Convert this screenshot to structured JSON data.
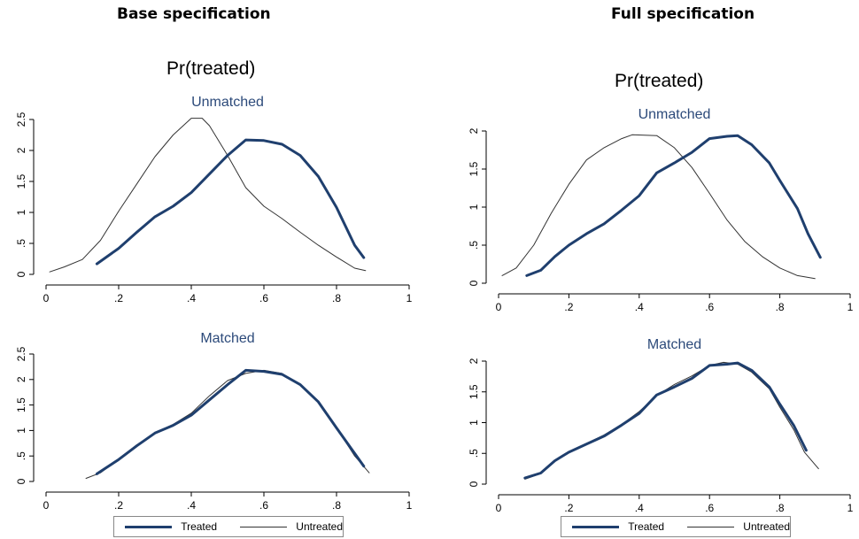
{
  "titles": {
    "left": "Base specification",
    "right": "Full specification",
    "pr_left": "Pr(treated)",
    "pr_right": "Pr(treated)"
  },
  "legend": {
    "treated": "Treated",
    "untreated": "Untreated"
  },
  "colors": {
    "treated": "#1f3f6e",
    "untreated": "#333333",
    "subtitle": "#2c4a7a"
  },
  "chart_data": [
    {
      "type": "line",
      "title": "Unmatched",
      "xlim": [
        0,
        1
      ],
      "ylim": [
        0,
        2.5
      ],
      "xticks": [
        0,
        0.2,
        0.4,
        0.6,
        0.8,
        1
      ],
      "xtick_labels": [
        "0",
        ".2",
        ".4",
        ".6",
        ".8",
        "1"
      ],
      "yticks": [
        0,
        0.5,
        1,
        1.5,
        2,
        2.5
      ],
      "ytick_labels": [
        "0",
        ".5",
        "1",
        "1.5",
        "2",
        "2.5"
      ],
      "series": [
        {
          "name": "Treated",
          "x": [
            0.14,
            0.2,
            0.25,
            0.3,
            0.35,
            0.4,
            0.45,
            0.5,
            0.55,
            0.6,
            0.65,
            0.7,
            0.75,
            0.8,
            0.85,
            0.875
          ],
          "y": [
            0.17,
            0.42,
            0.68,
            0.93,
            1.1,
            1.32,
            1.62,
            1.92,
            2.17,
            2.16,
            2.1,
            1.92,
            1.58,
            1.08,
            0.47,
            0.27
          ]
        },
        {
          "name": "Untreated",
          "x": [
            0.01,
            0.05,
            0.1,
            0.15,
            0.2,
            0.25,
            0.3,
            0.35,
            0.4,
            0.43,
            0.45,
            0.5,
            0.55,
            0.6,
            0.65,
            0.7,
            0.75,
            0.8,
            0.85,
            0.88
          ],
          "y": [
            0.04,
            0.12,
            0.24,
            0.55,
            1.02,
            1.46,
            1.9,
            2.25,
            2.52,
            2.52,
            2.4,
            1.92,
            1.4,
            1.1,
            0.9,
            0.68,
            0.47,
            0.28,
            0.1,
            0.06
          ]
        }
      ]
    },
    {
      "type": "line",
      "title": "Matched",
      "xlim": [
        0,
        1
      ],
      "ylim": [
        0,
        2.5
      ],
      "xticks": [
        0,
        0.2,
        0.4,
        0.6,
        0.8,
        1
      ],
      "xtick_labels": [
        "0",
        ".2",
        ".4",
        ".6",
        ".8",
        "1"
      ],
      "yticks": [
        0,
        0.5,
        1,
        1.5,
        2,
        2.5
      ],
      "ytick_labels": [
        "0",
        ".5",
        "1",
        "1.5",
        "2",
        "2.5"
      ],
      "series": [
        {
          "name": "Treated",
          "x": [
            0.14,
            0.2,
            0.25,
            0.3,
            0.35,
            0.4,
            0.45,
            0.5,
            0.55,
            0.6,
            0.65,
            0.7,
            0.75,
            0.8,
            0.85,
            0.875
          ],
          "y": [
            0.15,
            0.43,
            0.7,
            0.95,
            1.1,
            1.3,
            1.6,
            1.9,
            2.18,
            2.16,
            2.1,
            1.9,
            1.56,
            1.05,
            0.55,
            0.3
          ]
        },
        {
          "name": "Untreated",
          "x": [
            0.11,
            0.15,
            0.2,
            0.25,
            0.3,
            0.35,
            0.4,
            0.45,
            0.5,
            0.55,
            0.6,
            0.65,
            0.7,
            0.75,
            0.8,
            0.85,
            0.89
          ],
          "y": [
            0.06,
            0.17,
            0.44,
            0.72,
            0.95,
            1.12,
            1.34,
            1.68,
            1.98,
            2.12,
            2.18,
            2.12,
            1.9,
            1.56,
            1.05,
            0.5,
            0.17
          ]
        }
      ]
    },
    {
      "type": "line",
      "title": "Unmatched",
      "xlim": [
        0,
        1
      ],
      "ylim": [
        0,
        2
      ],
      "xticks": [
        0,
        0.2,
        0.4,
        0.6,
        0.8,
        1
      ],
      "xtick_labels": [
        "0",
        ".2",
        ".4",
        ".6",
        ".8",
        "1"
      ],
      "yticks": [
        0,
        0.5,
        1,
        1.5,
        2
      ],
      "ytick_labels": [
        "0",
        ".5",
        "1",
        "1.5",
        "2"
      ],
      "series": [
        {
          "name": "Treated",
          "x": [
            0.08,
            0.12,
            0.16,
            0.2,
            0.25,
            0.3,
            0.35,
            0.4,
            0.45,
            0.5,
            0.55,
            0.6,
            0.65,
            0.68,
            0.72,
            0.77,
            0.8,
            0.85,
            0.88,
            0.915
          ],
          "y": [
            0.1,
            0.17,
            0.35,
            0.5,
            0.65,
            0.78,
            0.96,
            1.15,
            1.45,
            1.58,
            1.72,
            1.9,
            1.93,
            1.94,
            1.82,
            1.58,
            1.35,
            0.98,
            0.65,
            0.34
          ]
        },
        {
          "name": "Untreated",
          "x": [
            0.01,
            0.05,
            0.1,
            0.15,
            0.2,
            0.25,
            0.3,
            0.35,
            0.38,
            0.45,
            0.5,
            0.55,
            0.6,
            0.65,
            0.7,
            0.75,
            0.8,
            0.85,
            0.9
          ],
          "y": [
            0.1,
            0.2,
            0.5,
            0.92,
            1.3,
            1.62,
            1.78,
            1.9,
            1.95,
            1.94,
            1.78,
            1.52,
            1.18,
            0.83,
            0.55,
            0.35,
            0.2,
            0.1,
            0.06
          ]
        }
      ]
    },
    {
      "type": "line",
      "title": "Matched",
      "xlim": [
        0,
        1
      ],
      "ylim": [
        0,
        2
      ],
      "xticks": [
        0,
        0.2,
        0.4,
        0.6,
        0.8,
        1
      ],
      "xtick_labels": [
        "0",
        ".2",
        ".4",
        ".6",
        ".8",
        "1"
      ],
      "yticks": [
        0,
        0.5,
        1,
        1.5,
        2
      ],
      "ytick_labels": [
        "0",
        ".5",
        "1",
        "1.5",
        "2"
      ],
      "series": [
        {
          "name": "Treated",
          "x": [
            0.075,
            0.12,
            0.16,
            0.2,
            0.25,
            0.3,
            0.35,
            0.4,
            0.45,
            0.5,
            0.55,
            0.6,
            0.65,
            0.68,
            0.72,
            0.77,
            0.8,
            0.84,
            0.875
          ],
          "y": [
            0.1,
            0.18,
            0.38,
            0.52,
            0.65,
            0.78,
            0.96,
            1.15,
            1.45,
            1.58,
            1.72,
            1.93,
            1.95,
            1.97,
            1.85,
            1.58,
            1.3,
            0.95,
            0.55
          ]
        },
        {
          "name": "Untreated",
          "x": [
            0.075,
            0.12,
            0.16,
            0.2,
            0.25,
            0.3,
            0.35,
            0.4,
            0.45,
            0.5,
            0.55,
            0.6,
            0.64,
            0.68,
            0.72,
            0.77,
            0.8,
            0.84,
            0.87,
            0.91
          ],
          "y": [
            0.08,
            0.17,
            0.38,
            0.53,
            0.66,
            0.8,
            0.97,
            1.18,
            1.44,
            1.62,
            1.76,
            1.93,
            1.98,
            1.95,
            1.82,
            1.55,
            1.25,
            0.88,
            0.52,
            0.25
          ]
        }
      ]
    }
  ]
}
